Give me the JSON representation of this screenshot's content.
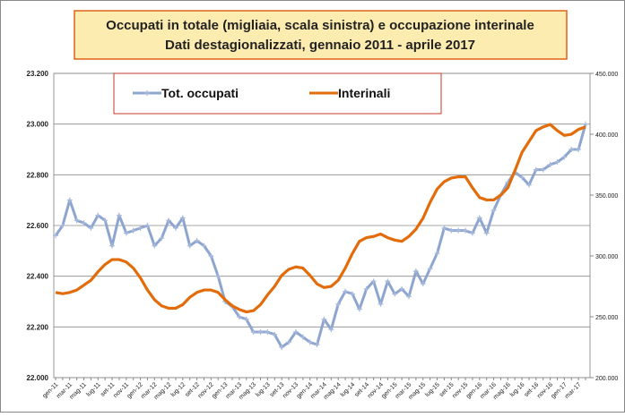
{
  "chart_data": {
    "type": "line",
    "title": "Occupati in  totale (migliaia, scala sinistra)  e occupazione interinale",
    "subtitle": "Dati destagionalizzati, gennaio 2011 - aprile 2017",
    "categories": [
      "gen-11",
      null,
      "mar-11",
      null,
      "mag-11",
      null,
      "lug-11",
      null,
      "set-11",
      null,
      "nov-11",
      null,
      "gen-12",
      null,
      "mar-12",
      null,
      "mag-12",
      null,
      "lug-12",
      null,
      "set-12",
      null,
      "nov-12",
      null,
      "gen-13",
      null,
      "mar-13",
      null,
      "mag-13",
      null,
      "lug-13",
      null,
      "set-13",
      null,
      "nov-13",
      null,
      "gen-14",
      null,
      "mar-14",
      null,
      "mag-14",
      null,
      "lug-14",
      null,
      "set-14",
      null,
      "nov-14",
      null,
      "gen-15",
      null,
      "mar-15",
      null,
      "mag-15",
      null,
      "lug-15",
      null,
      "set-15",
      null,
      "nov-15",
      null,
      "gen-16",
      null,
      "mar-16",
      null,
      "mag-16",
      null,
      "lug-16",
      null,
      "set-16",
      null,
      "nov-16",
      null,
      "gen-17",
      null,
      "mar-17",
      null
    ],
    "series": [
      {
        "name": "Tot. occupati",
        "color": "#8ea5cf",
        "axis": "y",
        "marker": true,
        "values": [
          22560,
          22600,
          22700,
          22620,
          22610,
          22590,
          22640,
          22620,
          22520,
          22640,
          22570,
          22580,
          22590,
          22600,
          22520,
          22550,
          22620,
          22590,
          22630,
          22520,
          22540,
          22520,
          22480,
          22400,
          22300,
          22280,
          22240,
          22230,
          22180,
          22180,
          22180,
          22170,
          22120,
          22140,
          22180,
          22160,
          22140,
          22130,
          22230,
          22190,
          22290,
          22340,
          22330,
          22270,
          22350,
          22380,
          22290,
          22380,
          22330,
          22350,
          22320,
          22420,
          22370,
          22430,
          22490,
          22590,
          22580,
          22580,
          22580,
          22570,
          22630,
          22570,
          22660,
          22720,
          22770,
          22810,
          22790,
          22760,
          22820,
          22820,
          22840,
          22850,
          22870,
          22900,
          22900,
          23000
        ]
      },
      {
        "name": "Interinali",
        "color": "#e36c0a",
        "axis": "y2",
        "marker": false,
        "values": [
          270000,
          269000,
          270000,
          272000,
          276000,
          280000,
          287000,
          293000,
          297000,
          297000,
          295000,
          290000,
          282000,
          272000,
          264000,
          259000,
          257000,
          257000,
          260000,
          266000,
          270000,
          272000,
          272000,
          270000,
          264000,
          259000,
          256000,
          254000,
          255000,
          260000,
          268000,
          275000,
          284000,
          289000,
          291000,
          290000,
          284000,
          277000,
          274000,
          275000,
          280000,
          290000,
          302000,
          312000,
          315000,
          316000,
          318000,
          315000,
          313000,
          312000,
          316000,
          322000,
          331000,
          344000,
          355000,
          361000,
          364000,
          365000,
          365000,
          356000,
          348000,
          346000,
          346000,
          350000,
          356000,
          370000,
          385000,
          394000,
          403000,
          406000,
          408000,
          403000,
          399000,
          400000,
          404000,
          406000
        ]
      }
    ],
    "ylim": [
      22000,
      23200
    ],
    "yticks": [
      {
        "value": 22000,
        "label": "22.000"
      },
      {
        "value": 22200,
        "label": "22.200"
      },
      {
        "value": 22400,
        "label": "22.400"
      },
      {
        "value": 22600,
        "label": "22.600"
      },
      {
        "value": 22800,
        "label": "22.800"
      },
      {
        "value": 23000,
        "label": "23.000"
      },
      {
        "value": 23200,
        "label": "23.200"
      }
    ],
    "y2lim": [
      200000,
      450000
    ],
    "y2ticks": [
      {
        "value": 200000,
        "label": "200.000"
      },
      {
        "value": 250000,
        "label": "250.000"
      },
      {
        "value": 300000,
        "label": "300.000"
      },
      {
        "value": 350000,
        "label": "350.000"
      },
      {
        "value": 400000,
        "label": "400.000"
      },
      {
        "value": 450000,
        "label": "450.000"
      }
    ],
    "grid": true
  }
}
